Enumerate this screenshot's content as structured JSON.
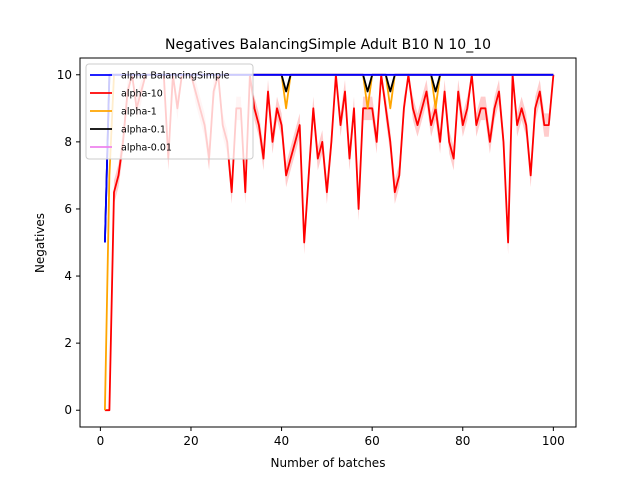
{
  "chart_data": {
    "type": "line",
    "title": "Negatives BalancingSimple Adult B10 N 10_10",
    "xlabel": "Number of batches",
    "ylabel": "Negatives",
    "xlim": [
      -4.5,
      105
    ],
    "ylim": [
      -0.5,
      10.5
    ],
    "xticks": [
      0,
      20,
      40,
      60,
      80,
      100
    ],
    "yticks": [
      0,
      2,
      4,
      6,
      8,
      10
    ],
    "legend_position": "top-left",
    "grid": false,
    "series": [
      {
        "name": "alpha BalancingSimple",
        "color": "#0000ff",
        "x": [
          1,
          2,
          3,
          100
        ],
        "y": [
          5,
          10,
          10,
          10
        ]
      },
      {
        "name": "alpha-10",
        "color": "#ff0000",
        "x": [
          1,
          2,
          3,
          4,
          5,
          6,
          7,
          8,
          9,
          10,
          11,
          12,
          13,
          14,
          15,
          16,
          17,
          18,
          19,
          20,
          21,
          22,
          23,
          24,
          25,
          26,
          27,
          28,
          29,
          30,
          31,
          32,
          33,
          34,
          35,
          36,
          37,
          38,
          39,
          40,
          41,
          42,
          43,
          44,
          45,
          46,
          47,
          48,
          49,
          50,
          51,
          52,
          53,
          54,
          55,
          56,
          57,
          58,
          59,
          60,
          61,
          62,
          63,
          64,
          65,
          66,
          67,
          68,
          69,
          70,
          71,
          72,
          73,
          74,
          75,
          76,
          77,
          78,
          79,
          80,
          81,
          82,
          83,
          84,
          85,
          86,
          87,
          88,
          89,
          90,
          91,
          92,
          93,
          94,
          95,
          96,
          97,
          98,
          99,
          100
        ],
        "y": [
          0,
          0,
          6.5,
          7,
          8,
          9.5,
          10,
          9,
          9.5,
          10,
          10,
          10,
          10,
          10,
          7.5,
          10,
          9,
          10,
          10,
          10,
          9.5,
          9,
          8.5,
          7.5,
          9.5,
          10,
          8.5,
          8,
          6.5,
          9,
          9,
          6.5,
          10,
          9,
          8.5,
          7.5,
          9.5,
          8,
          9,
          8.5,
          7,
          7.5,
          8,
          8.5,
          5,
          7,
          9,
          7.5,
          8,
          6.5,
          8,
          10,
          8.5,
          9.5,
          7.5,
          9,
          6,
          9,
          9,
          9,
          8,
          10,
          9,
          8,
          6.5,
          7,
          9,
          10,
          9,
          8.5,
          9,
          9.5,
          8.5,
          9,
          8,
          9.5,
          8,
          7.5,
          9.5,
          8.5,
          9,
          10,
          8.5,
          9,
          9,
          8,
          9,
          9.5,
          8,
          5,
          10,
          8.5,
          9,
          8.5,
          7,
          9,
          9.5,
          8.5,
          8.5,
          10
        ]
      },
      {
        "name": "alpha-1",
        "color": "#ffa500",
        "x": [
          1,
          2,
          3,
          40,
          41,
          42,
          58,
          59,
          60,
          63,
          64,
          65,
          73,
          74,
          75,
          100
        ],
        "y": [
          0,
          7,
          10,
          10,
          9,
          10,
          10,
          9,
          10,
          10,
          9,
          10,
          10,
          9,
          10,
          10
        ]
      },
      {
        "name": "alpha-0.1",
        "color": "#000000",
        "x": [
          1,
          2,
          3,
          40,
          41,
          42,
          58,
          59,
          60,
          63,
          64,
          65,
          73,
          74,
          75,
          100
        ],
        "y": [
          5,
          10,
          10,
          10,
          9.5,
          10,
          10,
          9.5,
          10,
          10,
          9.5,
          10,
          10,
          9.5,
          10,
          10
        ]
      },
      {
        "name": "alpha-0.01",
        "color": "#ee82ee",
        "x": [
          1,
          2,
          100
        ],
        "y": [
          10,
          10,
          10
        ]
      }
    ]
  }
}
